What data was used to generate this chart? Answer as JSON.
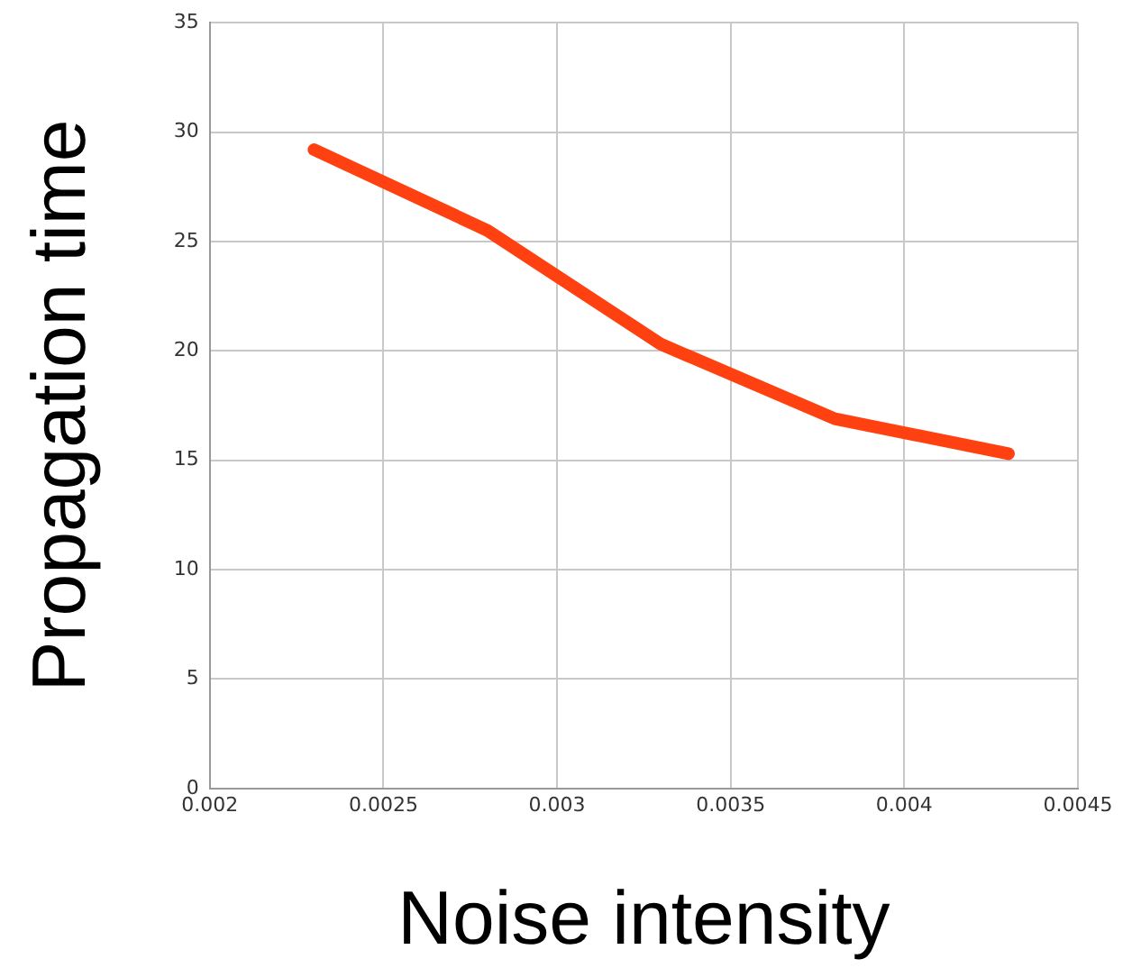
{
  "chart_data": {
    "type": "line",
    "xlabel": "Noise intensity",
    "ylabel": "Propagation time",
    "x": [
      0.0023,
      0.0028,
      0.0033,
      0.0038,
      0.0043
    ],
    "series": [
      {
        "color": "#ff4010",
        "values": [
          29.2,
          25.5,
          20.3,
          16.9,
          15.3
        ]
      }
    ],
    "xlim": [
      0.002,
      0.0045
    ],
    "xticks": [
      0.002,
      0.0025,
      0.003,
      0.0035,
      0.004,
      0.0045
    ],
    "ylim": [
      0,
      35
    ],
    "yticks": [
      0,
      5,
      10,
      15,
      20,
      25,
      30,
      35
    ],
    "grid": true,
    "marker": "none",
    "line_style": "solid"
  }
}
